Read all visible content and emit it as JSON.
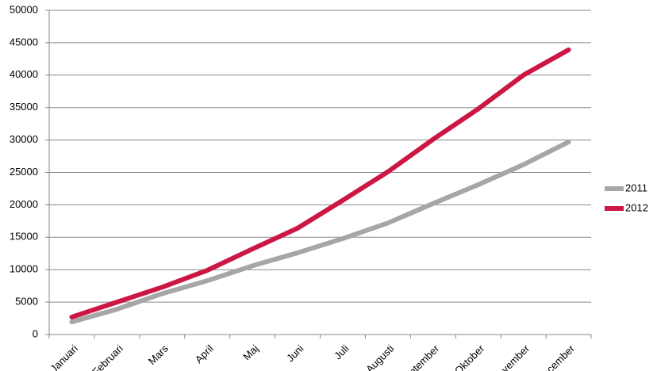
{
  "chart_data": {
    "type": "line",
    "categories": [
      "Januari",
      "Februari",
      "Mars",
      "April",
      "Maj",
      "Juni",
      "Juli",
      "Augusti",
      "September",
      "Oktober",
      "November",
      "December"
    ],
    "series": [
      {
        "name": "2011",
        "color": "#a6a6a6",
        "values": [
          1950,
          3900,
          6300,
          8300,
          10600,
          12600,
          14800,
          17200,
          20200,
          23100,
          26200,
          29700
        ]
      },
      {
        "name": "2012",
        "color": "#cc1745",
        "values": [
          2700,
          5000,
          7300,
          9900,
          13200,
          16400,
          20700,
          25100,
          30100,
          34800,
          40000,
          43900
        ]
      }
    ],
    "ylim": [
      0,
      50000
    ],
    "yticks": [
      0,
      5000,
      10000,
      15000,
      20000,
      25000,
      30000,
      35000,
      40000,
      45000,
      50000
    ],
    "grid": true,
    "legend": "right"
  }
}
